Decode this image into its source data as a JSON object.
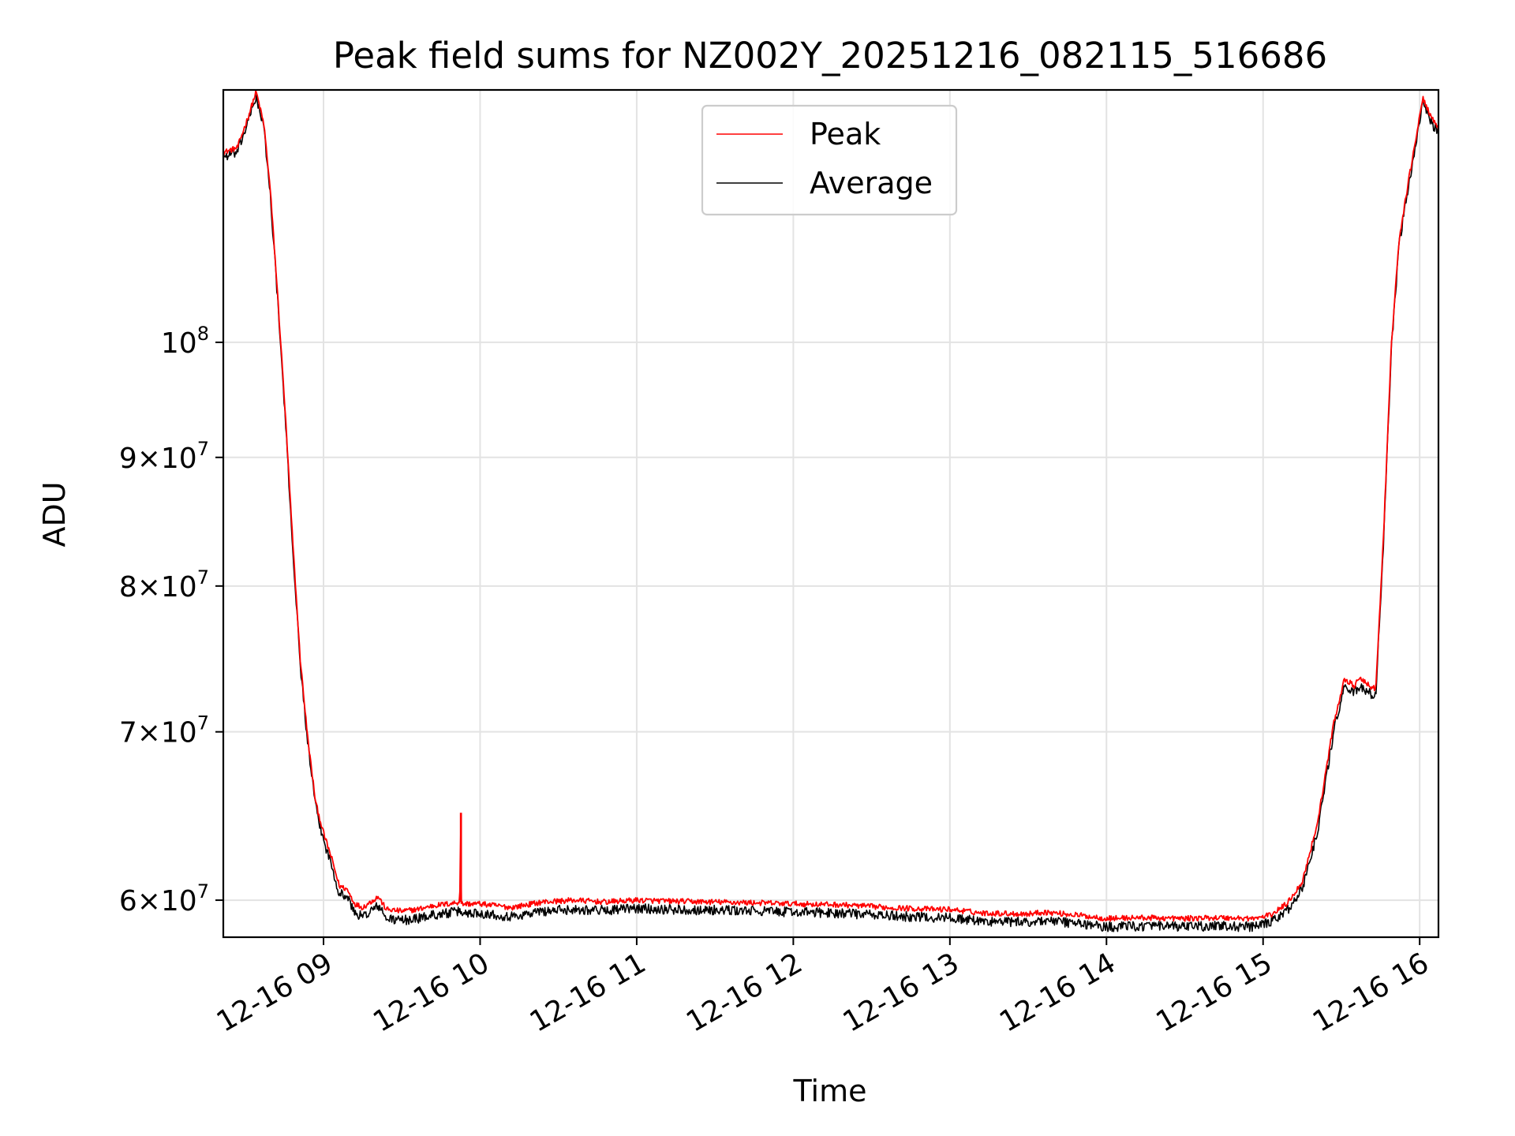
{
  "chart_data": {
    "type": "line",
    "title": "Peak field sums for NZ002Y_20251216_082115_516686",
    "xlabel": "Time",
    "ylabel": "ADU",
    "yscale": "log",
    "xlim": [
      8.36,
      16.12
    ],
    "ylim": [
      58000000,
      126000000
    ],
    "grid": true,
    "legend_position": "upper-center",
    "x_ticks": [
      {
        "value": 9,
        "label": "12-16 09"
      },
      {
        "value": 10,
        "label": "12-16 10"
      },
      {
        "value": 11,
        "label": "12-16 11"
      },
      {
        "value": 12,
        "label": "12-16 12"
      },
      {
        "value": 13,
        "label": "12-16 13"
      },
      {
        "value": 14,
        "label": "12-16 14"
      },
      {
        "value": 15,
        "label": "12-16 15"
      },
      {
        "value": 16,
        "label": "12-16 16"
      }
    ],
    "y_ticks": [
      {
        "value": 60000000,
        "mant": "6",
        "exp": "7"
      },
      {
        "value": 70000000,
        "mant": "7",
        "exp": "7"
      },
      {
        "value": 80000000,
        "mant": "8",
        "exp": "7"
      },
      {
        "value": 90000000,
        "mant": "9",
        "exp": "7"
      },
      {
        "value": 100000000,
        "mant": "",
        "exp": "8"
      }
    ],
    "y_tick_base": "10",
    "y_tick_times": "×",
    "x_unit": "hours on 2025-12-16",
    "series": [
      {
        "name": "Peak",
        "color": "#ff0000",
        "noise": 0.0025,
        "points": [
          [
            8.36,
            119000000
          ],
          [
            8.45,
            119500000
          ],
          [
            8.52,
            123000000
          ],
          [
            8.57,
            125800000
          ],
          [
            8.62,
            122000000
          ],
          [
            8.66,
            115000000
          ],
          [
            8.7,
            106000000
          ],
          [
            8.75,
            95000000
          ],
          [
            8.8,
            84000000
          ],
          [
            8.85,
            75000000
          ],
          [
            8.9,
            69500000
          ],
          [
            8.95,
            65600000
          ],
          [
            9.0,
            63800000
          ],
          [
            9.05,
            62400000
          ],
          [
            9.1,
            60800000
          ],
          [
            9.15,
            60600000
          ],
          [
            9.2,
            59800000
          ],
          [
            9.25,
            59600000
          ],
          [
            9.3,
            59900000
          ],
          [
            9.35,
            60200000
          ],
          [
            9.4,
            59500000
          ],
          [
            9.5,
            59400000
          ],
          [
            9.6,
            59500000
          ],
          [
            9.7,
            59700000
          ],
          [
            9.8,
            59800000
          ],
          [
            9.87,
            59900000
          ],
          [
            9.875,
            65000000
          ],
          [
            9.88,
            59800000
          ],
          [
            10.0,
            59800000
          ],
          [
            10.2,
            59600000
          ],
          [
            10.4,
            59900000
          ],
          [
            10.6,
            60000000
          ],
          [
            10.8,
            59900000
          ],
          [
            11.0,
            60000000
          ],
          [
            11.2,
            59950000
          ],
          [
            11.5,
            59900000
          ],
          [
            11.8,
            59850000
          ],
          [
            12.0,
            59800000
          ],
          [
            12.3,
            59750000
          ],
          [
            12.6,
            59600000
          ],
          [
            12.9,
            59500000
          ],
          [
            13.0,
            59500000
          ],
          [
            13.2,
            59300000
          ],
          [
            13.5,
            59250000
          ],
          [
            13.6,
            59350000
          ],
          [
            13.8,
            59200000
          ],
          [
            14.0,
            59000000
          ],
          [
            14.2,
            59050000
          ],
          [
            14.5,
            59000000
          ],
          [
            14.7,
            59050000
          ],
          [
            14.95,
            59000000
          ],
          [
            15.05,
            59200000
          ],
          [
            15.15,
            59800000
          ],
          [
            15.25,
            61000000
          ],
          [
            15.35,
            64500000
          ],
          [
            15.45,
            70500000
          ],
          [
            15.52,
            73500000
          ],
          [
            15.58,
            73000000
          ],
          [
            15.62,
            73500000
          ],
          [
            15.68,
            73000000
          ],
          [
            15.72,
            72800000
          ],
          [
            15.77,
            84000000
          ],
          [
            15.82,
            100000000
          ],
          [
            15.87,
            110000000
          ],
          [
            15.92,
            115000000
          ],
          [
            15.97,
            120000000
          ],
          [
            16.02,
            125000000
          ],
          [
            16.06,
            123500000
          ],
          [
            16.1,
            122000000
          ],
          [
            16.12,
            121500000
          ]
        ]
      },
      {
        "name": "Average",
        "color": "#000000",
        "noise": 0.0045,
        "points": [
          [
            8.36,
            118500000
          ],
          [
            8.45,
            119000000
          ],
          [
            8.52,
            122500000
          ],
          [
            8.57,
            125300000
          ],
          [
            8.62,
            121500000
          ],
          [
            8.66,
            114500000
          ],
          [
            8.7,
            105500000
          ],
          [
            8.75,
            94500000
          ],
          [
            8.8,
            83500000
          ],
          [
            8.85,
            74600000
          ],
          [
            8.9,
            69200000
          ],
          [
            8.95,
            65300000
          ],
          [
            9.0,
            63400000
          ],
          [
            9.05,
            62000000
          ],
          [
            9.1,
            60400000
          ],
          [
            9.15,
            60200000
          ],
          [
            9.2,
            59300000
          ],
          [
            9.25,
            59100000
          ],
          [
            9.3,
            59400000
          ],
          [
            9.35,
            59700000
          ],
          [
            9.4,
            59000000
          ],
          [
            9.5,
            58900000
          ],
          [
            9.6,
            59000000
          ],
          [
            9.7,
            59200000
          ],
          [
            9.8,
            59300000
          ],
          [
            9.87,
            59400000
          ],
          [
            9.88,
            59300000
          ],
          [
            10.0,
            59300000
          ],
          [
            10.2,
            59100000
          ],
          [
            10.4,
            59400000
          ],
          [
            10.6,
            59500000
          ],
          [
            10.8,
            59450000
          ],
          [
            11.0,
            59550000
          ],
          [
            11.2,
            59500000
          ],
          [
            11.5,
            59450000
          ],
          [
            11.8,
            59400000
          ],
          [
            12.0,
            59350000
          ],
          [
            12.3,
            59300000
          ],
          [
            12.6,
            59150000
          ],
          [
            12.9,
            59050000
          ],
          [
            13.0,
            59050000
          ],
          [
            13.2,
            58850000
          ],
          [
            13.5,
            58800000
          ],
          [
            13.6,
            58900000
          ],
          [
            13.8,
            58750000
          ],
          [
            14.0,
            58550000
          ],
          [
            14.2,
            58600000
          ],
          [
            14.5,
            58550000
          ],
          [
            14.7,
            58600000
          ],
          [
            14.95,
            58550000
          ],
          [
            15.05,
            58800000
          ],
          [
            15.15,
            59400000
          ],
          [
            15.25,
            60600000
          ],
          [
            15.35,
            64000000
          ],
          [
            15.45,
            70000000
          ],
          [
            15.52,
            73000000
          ],
          [
            15.58,
            72500000
          ],
          [
            15.62,
            73000000
          ],
          [
            15.68,
            72500000
          ],
          [
            15.72,
            72300000
          ],
          [
            15.77,
            83500000
          ],
          [
            15.82,
            99500000
          ],
          [
            15.87,
            109500000
          ],
          [
            15.92,
            114500000
          ],
          [
            15.97,
            119500000
          ],
          [
            16.02,
            124500000
          ],
          [
            16.06,
            123000000
          ],
          [
            16.1,
            121500000
          ],
          [
            16.12,
            121000000
          ]
        ]
      }
    ]
  },
  "legend": {
    "items": [
      {
        "label": "Peak",
        "color": "#ff0000"
      },
      {
        "label": "Average",
        "color": "#000000"
      }
    ]
  }
}
